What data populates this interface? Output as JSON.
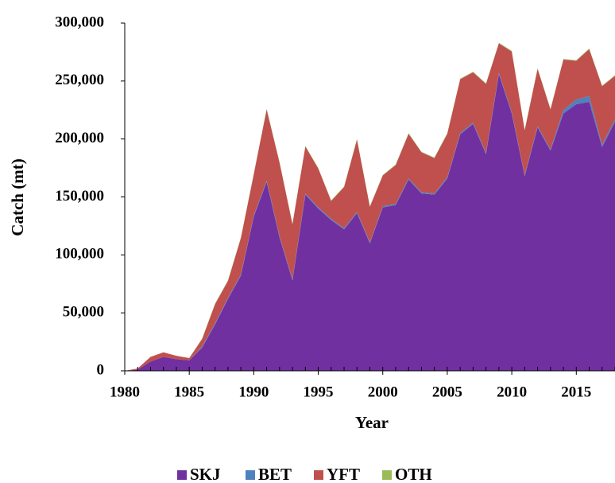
{
  "chart_data": {
    "type": "stacked_area",
    "x_label": "Year",
    "y_label": "Catch (mt)",
    "x": [
      1980,
      1981,
      1982,
      1983,
      1984,
      1985,
      1986,
      1987,
      1988,
      1989,
      1990,
      1991,
      1992,
      1993,
      1994,
      1995,
      1996,
      1997,
      1998,
      1999,
      2000,
      2001,
      2002,
      2003,
      2004,
      2005,
      2006,
      2007,
      2008,
      2009,
      2010,
      2011,
      2012,
      2013,
      2014,
      2015,
      2016,
      2017,
      2018
    ],
    "series": [
      {
        "name": "SKJ",
        "color": "#7030a0",
        "values": [
          0,
          1000,
          8000,
          12000,
          10000,
          9000,
          20000,
          40000,
          62000,
          82000,
          133000,
          163000,
          115000,
          78000,
          152000,
          140000,
          130000,
          122000,
          136000,
          110000,
          141000,
          143000,
          165000,
          153000,
          152000,
          166000,
          204000,
          213000,
          187000,
          256000,
          222000,
          168000,
          210000,
          190000,
          222000,
          230000,
          232000,
          193000,
          215000
        ]
      },
      {
        "name": "BET",
        "color": "#4f81bd",
        "values": [
          0,
          0,
          0,
          0,
          0,
          0,
          1000,
          1000,
          1000,
          1000,
          1000,
          1000,
          1000,
          1000,
          1000,
          1000,
          1000,
          1000,
          1000,
          1000,
          1000,
          1000,
          1000,
          1000,
          1000,
          1000,
          1000,
          1000,
          1000,
          1000,
          1000,
          1000,
          1000,
          1000,
          3000,
          4000,
          5000,
          2000,
          2000
        ]
      },
      {
        "name": "YFT",
        "color": "#c0504d",
        "values": [
          0,
          1000,
          4000,
          4000,
          3000,
          2000,
          6500,
          16500,
          14500,
          31500,
          35500,
          61500,
          63500,
          47500,
          40500,
          33500,
          15500,
          35500,
          62500,
          30500,
          26500,
          33500,
          38500,
          34500,
          30500,
          37500,
          46500,
          43500,
          59500,
          25500,
          52500,
          38500,
          49500,
          34500,
          43500,
          33500,
          40500,
          50500,
          37500
        ]
      },
      {
        "name": "OTH",
        "color": "#9bbb59",
        "values": [
          0,
          0,
          0,
          0,
          0,
          0,
          500,
          500,
          500,
          500,
          500,
          500,
          500,
          500,
          500,
          500,
          500,
          500,
          500,
          500,
          500,
          500,
          500,
          500,
          500,
          500,
          500,
          500,
          500,
          500,
          500,
          500,
          500,
          500,
          500,
          500,
          500,
          500,
          500
        ]
      }
    ],
    "xlim": [
      1980,
      2018
    ],
    "xticks": [
      1980,
      1985,
      1990,
      1995,
      2000,
      2005,
      2010,
      2015
    ],
    "ylim": [
      0,
      300000
    ],
    "yticks": [
      0,
      {
        "value": 50000,
        "label": "50,000"
      },
      {
        "value": 100000,
        "label": "100,000"
      },
      {
        "value": 150000,
        "label": "150,000"
      },
      {
        "value": 200000,
        "label": "200,000"
      },
      {
        "value": 250000,
        "label": "250,000"
      },
      {
        "value": 300000,
        "label": "300,000"
      }
    ],
    "legend": "bottom"
  }
}
